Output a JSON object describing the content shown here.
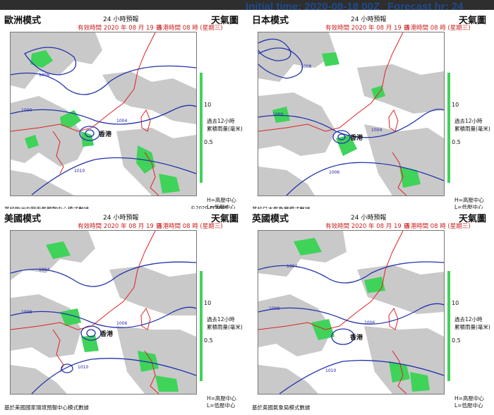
{
  "header": {
    "initial_time": "Initial time: 2020-08-18 00Z",
    "forecast_hr": "Forecast hr: 24"
  },
  "legend": {
    "rain_label_1": "過去12小時",
    "rain_label_2": "累積雨量(毫米)",
    "tick_10": "10",
    "tick_05": "0.5",
    "high_label": "H=高壓中心",
    "low_label": "L=低壓中心"
  },
  "panels": [
    {
      "model": "歐洲模式",
      "forecast": "24 小時預報",
      "chart": "天氣圖",
      "valid": "有效時間 2020 年 08 月 19 日",
      "hk_time": "香港時間 08 時 (星期三)",
      "source": "基於歐洲中期天氣預報中心模式數據",
      "copyright": "©2020 ECMWF",
      "hk_label": "香港",
      "isobars": [
        "1000",
        "1004",
        "1006",
        "1010"
      ]
    },
    {
      "model": "日本模式",
      "forecast": "24 小時預報",
      "chart": "天氣圖",
      "valid": "有效時間 2020 年 08 月 19 日",
      "hk_time": "香港時間 08 時 (星期三)",
      "source": "基於日本氣象廳模式數據",
      "copyright": "",
      "hk_label": "香港",
      "isobars": [
        "1000",
        "1004",
        "1008",
        "1006"
      ]
    },
    {
      "model": "美國模式",
      "forecast": "24 小時預報",
      "chart": "天氣圖",
      "valid": "有效時間 2020 年 08 月 19 日",
      "hk_time": "香港時間 08 時 (星期三)",
      "source": "基於美國國家環境預報中心模式數據",
      "copyright": "",
      "hk_label": "香港",
      "isobars": [
        "1008",
        "1006",
        "1004",
        "1010"
      ]
    },
    {
      "model": "英國模式",
      "forecast": "24 小時預報",
      "chart": "天氣圖",
      "valid": "有效時間 2020 年 08 月 19 日",
      "hk_time": "香港時間 08 時 (星期三)",
      "source": "基於英國氣象局模式數據",
      "copyright": "",
      "hk_label": "香港",
      "isobars": [
        "1008",
        "1006",
        "1004",
        "1010"
      ]
    }
  ]
}
